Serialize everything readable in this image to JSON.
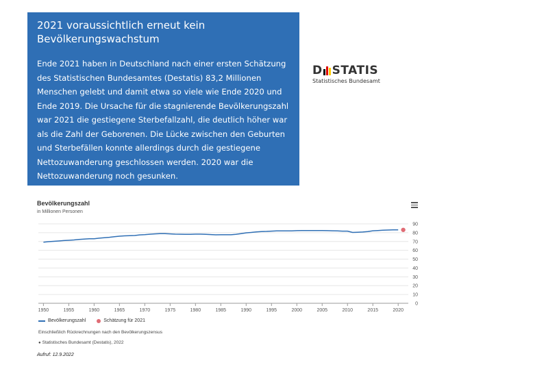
{
  "infobox": {
    "headline": "2021 voraussichtlich erneut kein Bevölkerungswachstum",
    "body": "Ende 2021 haben in Deutschland nach einer ersten Schätzung des Statistischen Bundesamtes (Destatis) 83,2 Millionen Menschen gelebt und damit etwa so viele wie Ende 2020 und Ende 2019. Die Ursache für die stagnierende Bevölkerungszahl war 2021 die gestiegene Sterbefallzahl, die deutlich höher war als die Zahl der Geborenen. Die Lücke zwischen den Geburten und Sterbefällen konnte allerdings durch die gestiegene Nettozuwanderung geschlossen werden. 2020 war die Nettozuwanderung noch gesunken."
  },
  "logo": {
    "letter_d": "D",
    "rest": "STATIS",
    "subtitle": "Statistisches Bundesamt",
    "bar_colors": [
      "#000000",
      "#dd0000",
      "#ffcc00"
    ]
  },
  "chart_data": {
    "type": "line",
    "title": "Bevölkerungszahl",
    "subtitle": "in Millionen Personen",
    "x_ticks": [
      "1950",
      "1955",
      "1960",
      "1965",
      "1970",
      "1975",
      "1980",
      "1985",
      "1990",
      "1995",
      "2000",
      "2005",
      "2010",
      "2015",
      "2020"
    ],
    "y_ticks": [
      "0",
      "10",
      "20",
      "30",
      "40",
      "50",
      "60",
      "70",
      "80",
      "90"
    ],
    "ylim": [
      0,
      90
    ],
    "xlim": [
      1949,
      2022
    ],
    "y_axis_side": "right",
    "grid": true,
    "series": [
      {
        "name": "Bevölkerungszahl",
        "color": "#2f6fb5",
        "x": [
          1950,
          1951,
          1952,
          1953,
          1954,
          1955,
          1956,
          1957,
          1958,
          1959,
          1960,
          1961,
          1962,
          1963,
          1964,
          1965,
          1966,
          1967,
          1968,
          1969,
          1970,
          1971,
          1972,
          1973,
          1974,
          1975,
          1976,
          1977,
          1978,
          1979,
          1980,
          1981,
          1982,
          1983,
          1984,
          1985,
          1986,
          1987,
          1988,
          1989,
          1990,
          1991,
          1992,
          1993,
          1994,
          1995,
          1996,
          1997,
          1998,
          1999,
          2000,
          2001,
          2002,
          2003,
          2004,
          2005,
          2006,
          2007,
          2008,
          2009,
          2010,
          2011,
          2012,
          2013,
          2014,
          2015,
          2016,
          2017,
          2018,
          2019,
          2020
        ],
        "values": [
          69.3,
          69.8,
          70.2,
          70.6,
          71.1,
          71.4,
          71.8,
          72.3,
          72.7,
          73.2,
          73.1,
          73.8,
          74.3,
          74.8,
          75.4,
          76.0,
          76.4,
          76.6,
          76.8,
          77.5,
          77.8,
          78.3,
          78.7,
          78.9,
          78.9,
          78.7,
          78.4,
          78.3,
          78.1,
          78.2,
          78.4,
          78.4,
          78.2,
          77.9,
          77.6,
          77.7,
          77.7,
          77.7,
          78.1,
          78.9,
          79.8,
          80.3,
          80.9,
          81.3,
          81.5,
          81.8,
          82.0,
          82.1,
          82.0,
          82.1,
          82.3,
          82.4,
          82.5,
          82.5,
          82.5,
          82.4,
          82.3,
          82.2,
          82.0,
          81.8,
          81.8,
          80.3,
          80.5,
          80.8,
          81.2,
          82.2,
          82.5,
          82.8,
          83.0,
          83.2,
          83.2
        ]
      },
      {
        "name": "Schätzung für 2021",
        "color": "#e06c75",
        "x": [
          2021
        ],
        "values": [
          83.2
        ]
      }
    ]
  },
  "note": "Einschließlich Rückrechnungen nach den Bevölkerungszensus",
  "source": "Statistisches Bundesamt (Destatis), 2022",
  "accessed": "Aufruf: 12.9.2022"
}
